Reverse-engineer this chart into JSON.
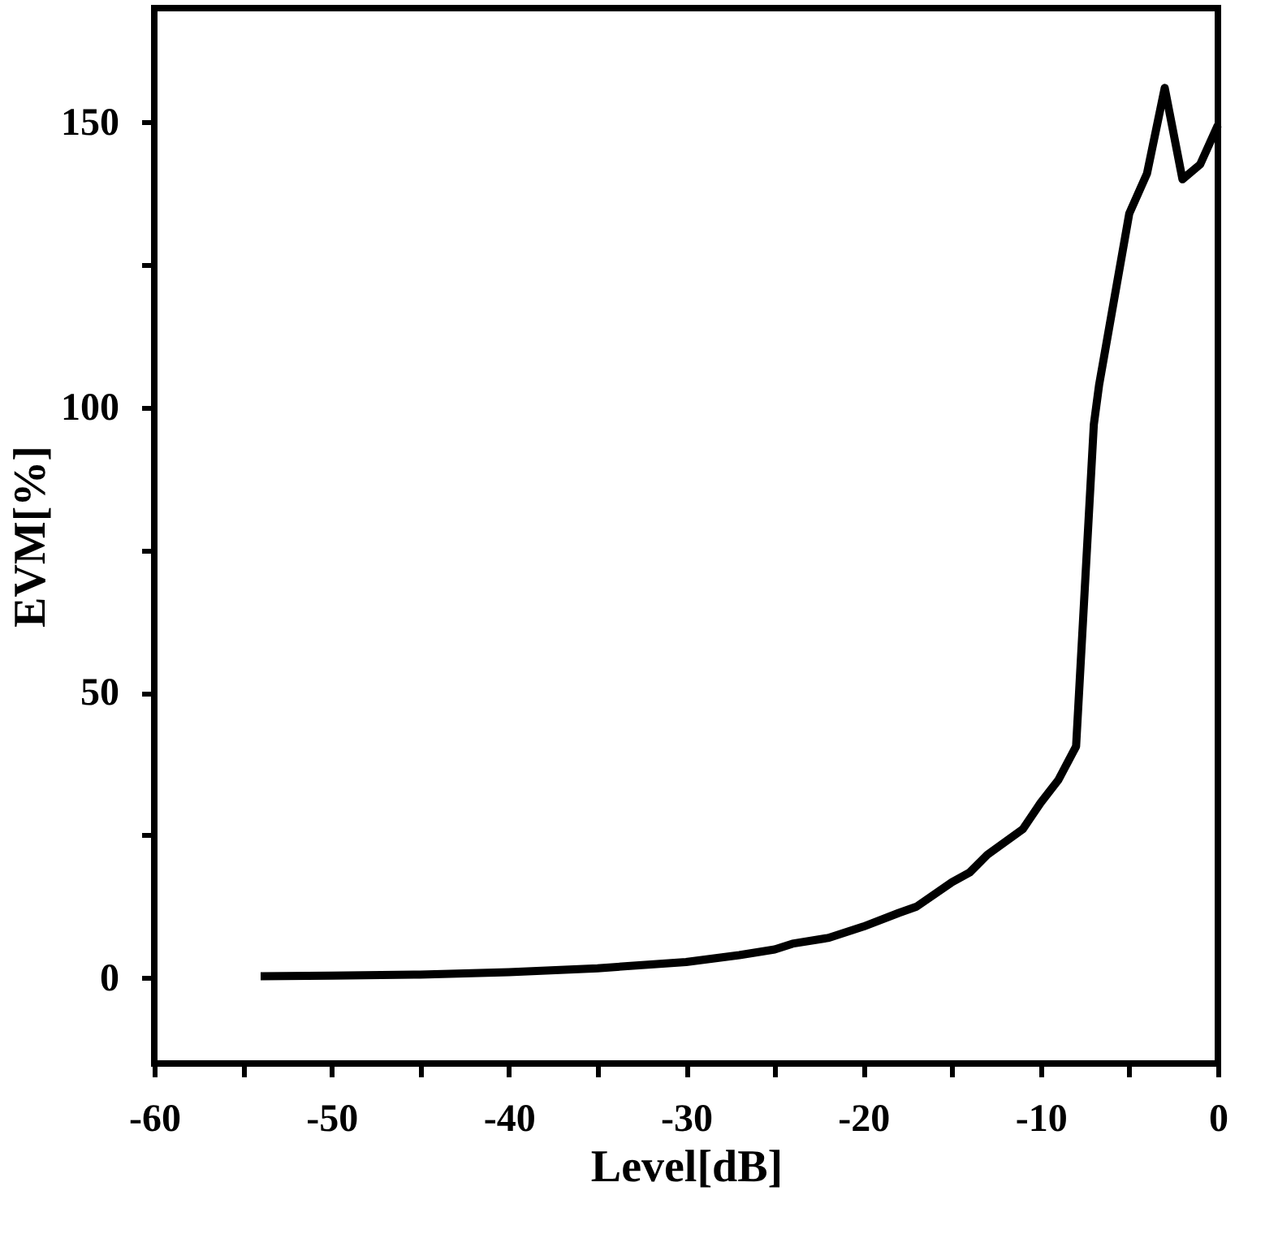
{
  "chart_data": {
    "type": "line",
    "xlabel": "Level[dB]",
    "ylabel": "EVM[%]",
    "x": [
      -54,
      -50,
      -45,
      -40,
      -35,
      -30,
      -27,
      -25,
      -24,
      -22,
      -20,
      -18,
      -17,
      -15,
      -14,
      -13,
      -11,
      -10,
      -9,
      -8,
      -7,
      -6.7,
      -5,
      -4,
      -3,
      -2,
      -1,
      0
    ],
    "series": [
      {
        "color": "#000000",
        "values": [
          0.3,
          0.4,
          0.6,
          1.0,
          1.7,
          2.8,
          4,
          5,
          6,
          7,
          9,
          11.4,
          12.5,
          16.8,
          18.5,
          21.6,
          26.1,
          30.7,
          34.7,
          40.6,
          97,
          104,
          134,
          141,
          156,
          140,
          142.6,
          149.5
        ]
      }
    ],
    "xlim": [
      -60,
      0
    ],
    "ylim": [
      -15,
      170
    ],
    "xticks": [
      -60,
      {
        "value": -55,
        "label": null
      },
      -50,
      {
        "value": -45,
        "label": null
      },
      -40,
      {
        "value": -35,
        "label": null
      },
      -30,
      {
        "value": -25,
        "label": null
      },
      -20,
      {
        "value": -15,
        "label": null
      },
      -10,
      {
        "value": -5,
        "label": null
      },
      0
    ],
    "yticks": [
      0,
      {
        "value": 25,
        "label": null
      },
      50,
      {
        "value": 75,
        "label": null
      },
      100,
      {
        "value": 125,
        "label": null
      },
      150
    ],
    "grid": false,
    "marker": "none",
    "line_style": "solid"
  }
}
